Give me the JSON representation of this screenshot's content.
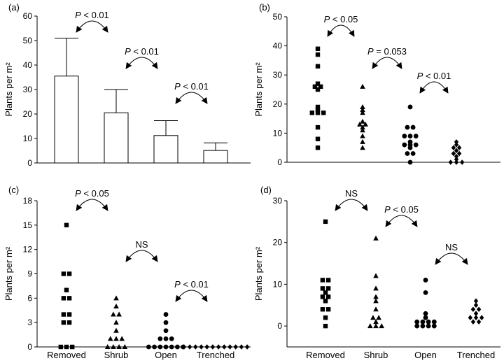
{
  "chart_data": [
    {
      "panel": "(a)",
      "type": "bar",
      "categories": [
        "Removed",
        "Shrub",
        "Open",
        "Trenched"
      ],
      "values": [
        35.5,
        20.5,
        11.2,
        5.1
      ],
      "error_upper": [
        51,
        30,
        17.3,
        8.2
      ],
      "ylabel": "Plants per m²",
      "ylim": [
        0,
        60
      ],
      "yticks": [
        "0",
        "10",
        "20",
        "30",
        "40",
        "50",
        "60"
      ],
      "show_xlabels": false,
      "comparisons": [
        {
          "from": 0,
          "to": 1,
          "label": "P < 0.01"
        },
        {
          "from": 1,
          "to": 2,
          "label": "P < 0.01"
        },
        {
          "from": 2,
          "to": 3,
          "label": "P < 0.01"
        }
      ]
    },
    {
      "panel": "(b)",
      "type": "scatter",
      "categories": [
        "Removed",
        "Shrub",
        "Open",
        "Trenched"
      ],
      "markers": [
        "square",
        "triangle",
        "circle",
        "diamond"
      ],
      "series": [
        {
          "values": [
            39,
            37,
            33,
            27,
            26,
            26,
            25,
            19,
            18,
            17,
            17,
            17,
            12,
            8,
            5
          ]
        },
        {
          "values": [
            26,
            19,
            18,
            17,
            14,
            13,
            13,
            12,
            11,
            9,
            7,
            5
          ]
        },
        {
          "values": [
            19,
            12,
            12,
            9,
            9,
            9,
            7,
            6,
            6,
            6,
            5,
            3,
            3,
            0
          ]
        },
        {
          "values": [
            7,
            6,
            5,
            5,
            4,
            3,
            3,
            2,
            1,
            0,
            0,
            0
          ]
        }
      ],
      "ylabel": "Plants per m²",
      "ylim": [
        0,
        50
      ],
      "yticks": [
        "0",
        "10",
        "20",
        "30",
        "40",
        "50"
      ],
      "show_xlabels": false,
      "comparisons": [
        {
          "from": 0,
          "to": 1,
          "label": "P < 0.05"
        },
        {
          "from": 1,
          "to": 2,
          "label": "P = 0.053"
        },
        {
          "from": 2,
          "to": 3,
          "label": "P < 0.01"
        }
      ]
    },
    {
      "panel": "(c)",
      "type": "scatter",
      "categories": [
        "Removed",
        "Shrub",
        "Open",
        "Trenched"
      ],
      "markers": [
        "square",
        "triangle",
        "circle",
        "diamond"
      ],
      "series": [
        {
          "values": [
            15,
            9,
            9,
            7,
            6,
            6,
            4,
            4,
            3,
            3,
            0,
            0,
            0
          ]
        },
        {
          "values": [
            6,
            5,
            4,
            4,
            3,
            2,
            1,
            1,
            1,
            0,
            0,
            0,
            0
          ]
        },
        {
          "values": [
            4,
            3,
            2,
            1,
            1,
            1,
            0,
            0,
            0,
            0,
            0,
            0,
            0
          ]
        },
        {
          "values": [
            0,
            0,
            0,
            0,
            0,
            0,
            0,
            0,
            0,
            0,
            0,
            0
          ]
        }
      ],
      "ylabel": "Plants per m²",
      "ylim": [
        0,
        18
      ],
      "yticks": [
        "0",
        "3",
        "6",
        "9",
        "12",
        "15",
        "18"
      ],
      "show_xlabels": true,
      "comparisons": [
        {
          "from": 0,
          "to": 1,
          "label": "P < 0.05"
        },
        {
          "from": 1,
          "to": 2,
          "label": "NS"
        },
        {
          "from": 2,
          "to": 3,
          "label": "P < 0.01"
        }
      ]
    },
    {
      "panel": "(d)",
      "type": "scatter",
      "categories": [
        "Removed",
        "Shrub",
        "Open",
        "Trenched"
      ],
      "markers": [
        "square",
        "triangle",
        "circle",
        "diamond"
      ],
      "series": [
        {
          "values": [
            25,
            11,
            11,
            9,
            9,
            8,
            7,
            7,
            6,
            4,
            4,
            2,
            0
          ]
        },
        {
          "values": [
            21,
            12,
            9,
            7,
            6,
            4,
            2,
            2,
            1,
            0,
            0,
            0
          ]
        },
        {
          "values": [
            11,
            8,
            3,
            2,
            1,
            1,
            1,
            1,
            0,
            0,
            0,
            0
          ]
        },
        {
          "values": [
            6,
            5,
            4,
            4,
            3,
            2,
            2,
            2,
            1,
            1
          ]
        }
      ],
      "ylabel": "Plants per m²",
      "ylim": [
        -5,
        30
      ],
      "yticks": [
        "0",
        "10",
        "20",
        "30"
      ],
      "ytick_values": [
        0,
        10,
        20,
        30
      ],
      "show_xlabels": true,
      "comparisons": [
        {
          "from": 0,
          "to": 1,
          "label": "NS"
        },
        {
          "from": 1,
          "to": 2,
          "label": "P < 0.05"
        },
        {
          "from": 2,
          "to": 3,
          "label": "NS"
        }
      ]
    }
  ]
}
